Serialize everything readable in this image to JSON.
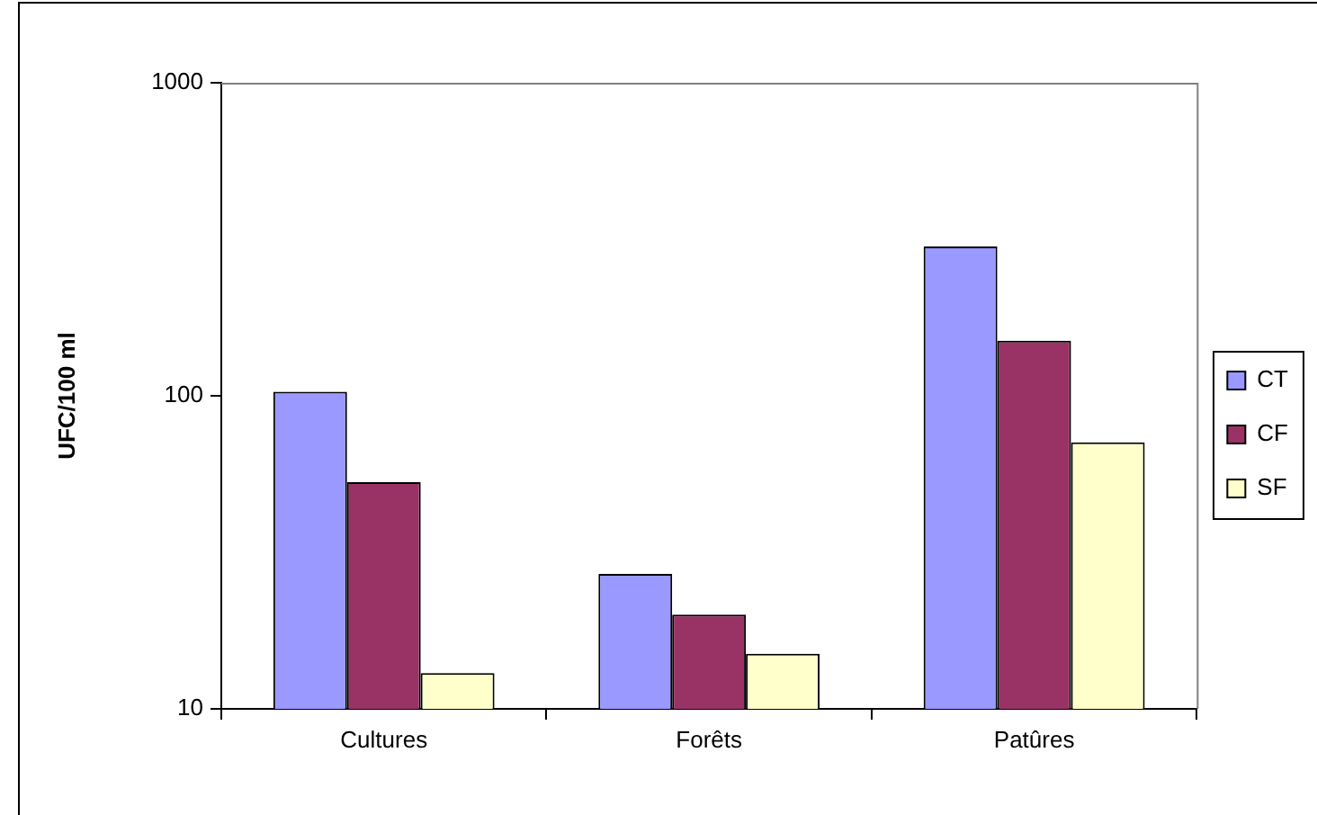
{
  "chart_data": {
    "type": "bar",
    "ylabel": "UFC/100 ml",
    "categories": [
      "Cultures",
      "Forêts",
      "Patûres"
    ],
    "series": [
      {
        "name": "CT",
        "color": "#9999ff",
        "values": [
          103,
          27,
          300
        ]
      },
      {
        "name": "CF",
        "color": "#993366",
        "values": [
          53,
          20,
          150
        ]
      },
      {
        "name": "SF",
        "color": "#ffffcc",
        "values": [
          13,
          15,
          71
        ]
      }
    ],
    "ylim": [
      10,
      1000
    ],
    "yticks": [
      10,
      100,
      1000
    ],
    "log": true,
    "grid": false,
    "legend": "right"
  }
}
